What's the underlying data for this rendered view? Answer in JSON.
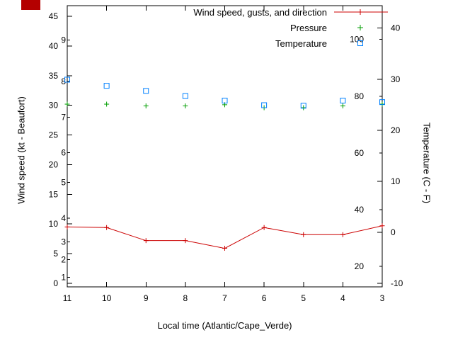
{
  "decoration": {
    "top_left_box_color": "#b40000"
  },
  "chart_data": {
    "type": "line",
    "title": "",
    "xlabel": "Local time (Atlantic/Cape_Verde)",
    "ylabel_left": "Wind speed (kt - Beaufort)",
    "ylabel_right": "Temperature (C - F)",
    "x_categories": [
      "11",
      "10",
      "9",
      "8",
      "7",
      "6",
      "5",
      "4",
      "3"
    ],
    "ylim_left_kt": [
      -0.6,
      46.8
    ],
    "ylim_right_c": [
      -10.7,
      44.4
    ],
    "left_axis_ticks_kt": [
      0,
      5,
      10,
      15,
      20,
      25,
      30,
      35,
      40,
      45
    ],
    "left_axis_ticks_beaufort": [
      {
        "label": "1",
        "kt": 1
      },
      {
        "label": "2",
        "kt": 4
      },
      {
        "label": "3",
        "kt": 7
      },
      {
        "label": "4",
        "kt": 11
      },
      {
        "label": "5",
        "kt": 17
      },
      {
        "label": "6",
        "kt": 22
      },
      {
        "label": "7",
        "kt": 28
      },
      {
        "label": "8",
        "kt": 34
      },
      {
        "label": "9",
        "kt": 41
      }
    ],
    "right_axis_ticks_c": [
      -10,
      0,
      10,
      20,
      30,
      40
    ],
    "right_axis_ticks_f": [
      20,
      40,
      60,
      80,
      100
    ],
    "grid": false,
    "legend_position": "top-right-inside",
    "series": [
      {
        "name": "Wind speed, gusts, and direction",
        "color": "#cc0000",
        "marker": "plus",
        "line": true,
        "axis": "left",
        "unit": "kt",
        "values": [
          9.5,
          9.4,
          7.2,
          7.2,
          5.9,
          9.4,
          8.2,
          8.2,
          9.7
        ]
      },
      {
        "name": "Pressure",
        "color": "#009e00",
        "marker": "plus",
        "line": false,
        "axis": "left",
        "unit": "left-axis scale",
        "values": [
          30.2,
          30.2,
          29.9,
          29.9,
          30.1,
          29.6,
          29.6,
          29.9,
          30.2
        ]
      },
      {
        "name": "Temperature",
        "color": "#0080ff",
        "marker": "open-square",
        "line": false,
        "axis": "right",
        "unit": "C",
        "values": [
          29.9,
          28.7,
          27.7,
          26.7,
          25.8,
          24.9,
          24.8,
          25.8,
          25.5
        ]
      }
    ]
  }
}
